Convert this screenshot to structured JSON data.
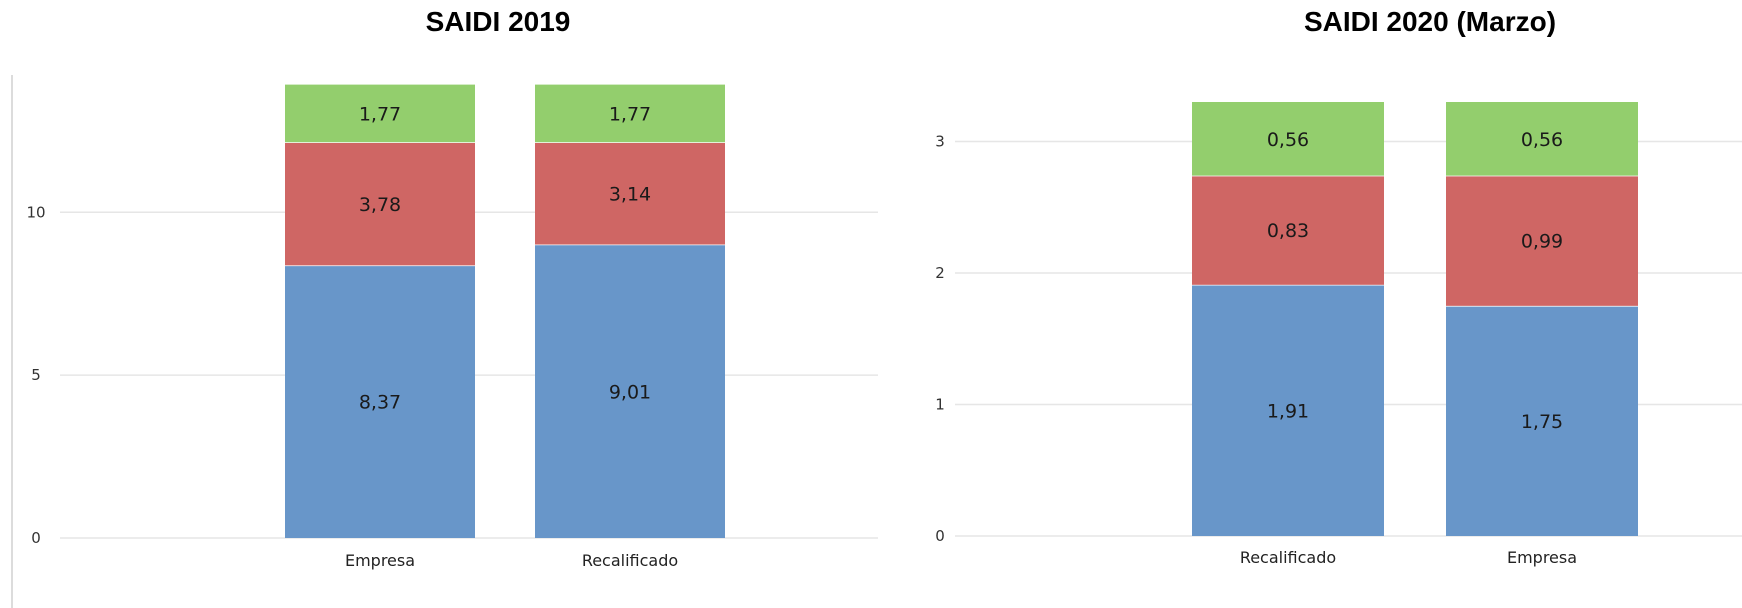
{
  "chart_data": [
    {
      "type": "bar",
      "stacked": true,
      "title": "SAIDI 2019",
      "categories": [
        "Empresa",
        "Recalificado"
      ],
      "ylim": [
        0,
        14
      ],
      "yticks": [
        0,
        5,
        10
      ],
      "grid": true,
      "series": [
        {
          "color": "#6896c9",
          "values": [
            8.37,
            9.01
          ],
          "labels": [
            "8,37",
            "9,01"
          ]
        },
        {
          "color": "#cf6664",
          "values": [
            3.78,
            3.14
          ],
          "labels": [
            "3,78",
            "3,14"
          ]
        },
        {
          "color": "#93ce6d",
          "values": [
            1.77,
            1.77
          ],
          "labels": [
            "1,77",
            "1,77"
          ]
        }
      ]
    },
    {
      "type": "bar",
      "stacked": true,
      "title": "SAIDI 2020 (Marzo)",
      "categories": [
        "Recalificado",
        "Empresa"
      ],
      "ylim": [
        0,
        3.3
      ],
      "yticks": [
        0,
        1,
        2,
        3
      ],
      "grid": true,
      "series": [
        {
          "color": "#6896c9",
          "values": [
            1.91,
            1.75
          ],
          "labels": [
            "1,91",
            "1,75"
          ]
        },
        {
          "color": "#cf6664",
          "values": [
            0.83,
            0.99
          ],
          "labels": [
            "0,83",
            "0,99"
          ]
        },
        {
          "color": "#93ce6d",
          "values": [
            0.56,
            0.56
          ],
          "labels": [
            "0,56",
            "0,56"
          ]
        }
      ]
    }
  ]
}
